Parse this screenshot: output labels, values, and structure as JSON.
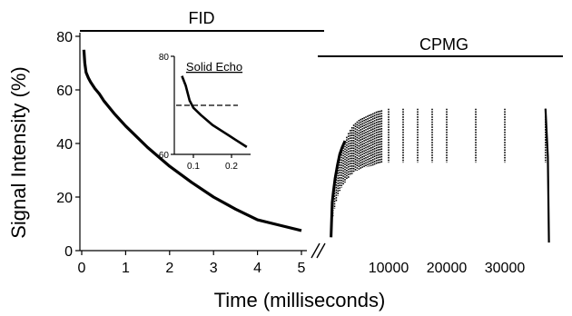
{
  "chart_data": {
    "type": "line",
    "ylabel": "Signal Intensity (%)",
    "xlabel": "Time (milliseconds)",
    "ylim": [
      0,
      80
    ],
    "yticks": [
      "0",
      "20",
      "40",
      "60",
      "80"
    ],
    "axis_break": true,
    "segments": [
      {
        "label": "FID",
        "xlim": [
          0,
          5.5
        ],
        "xticks": [
          "0",
          "1",
          "2",
          "3",
          "4",
          "5"
        ],
        "x": [
          0.05,
          0.07,
          0.1,
          0.15,
          0.2,
          0.3,
          0.4,
          0.5,
          0.75,
          1.0,
          1.5,
          2.0,
          2.5,
          3.0,
          3.5,
          4.0,
          4.5,
          5.0
        ],
        "y": [
          75,
          70,
          66.5,
          64.5,
          63,
          60.5,
          58.5,
          56,
          51,
          46.5,
          38.5,
          31.5,
          25.5,
          20,
          15.5,
          11.5,
          9.5,
          7.5
        ]
      },
      {
        "label": "CPMG",
        "xlim": [
          0,
          40000
        ],
        "xticks": [
          "10000",
          "20000",
          "30000"
        ],
        "x": [
          100,
          300,
          500,
          800,
          1200,
          1600,
          2000,
          2500,
          3000,
          3500,
          4000,
          5000,
          6000,
          7000,
          8000,
          9000,
          10000,
          12500,
          15000,
          17500,
          20000,
          25000,
          30000,
          37000,
          37600
        ],
        "y": [
          5,
          18,
          22,
          27,
          32,
          36,
          38.5,
          41,
          43.5,
          45.5,
          47,
          49,
          50,
          51,
          52,
          52.5,
          53,
          53,
          53,
          53,
          53,
          53,
          53,
          53,
          3
        ]
      }
    ],
    "inset": {
      "title": "Solid Echo",
      "xlim": [
        0.05,
        0.25
      ],
      "ylim": [
        60,
        80
      ],
      "xticks": [
        "0.1",
        "0.2"
      ],
      "yticks": [
        "60",
        "80"
      ],
      "dashed_y": 70,
      "x": [
        0.07,
        0.08,
        0.09,
        0.1,
        0.12,
        0.15,
        0.18,
        0.21,
        0.24
      ],
      "y": [
        76,
        74,
        71,
        69.5,
        68,
        66,
        64.5,
        63,
        61.5
      ]
    }
  }
}
